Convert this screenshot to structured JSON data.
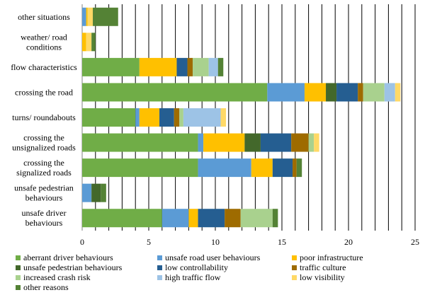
{
  "chart_data": {
    "type": "bar",
    "orientation": "horizontal",
    "stacked": true,
    "title": "",
    "xlabel": "",
    "ylabel": "",
    "xlim": [
      0,
      25
    ],
    "xticks": [
      0,
      5,
      10,
      15,
      20,
      25
    ],
    "grid": "vertical",
    "legend_position": "bottom",
    "categories": [
      [
        "other situations"
      ],
      [
        "weather/ road",
        "conditions"
      ],
      [
        "flow characteristics"
      ],
      [
        "crossing the road"
      ],
      [
        "turns/ roundabouts"
      ],
      [
        "crossing the",
        "unsignalized roads"
      ],
      [
        "crossing the",
        "signalized roads"
      ],
      [
        "unsafe pedestrian",
        "behaviours"
      ],
      [
        "unsafe driver",
        "behaviours"
      ]
    ],
    "series": [
      {
        "name": "aberrant driver behaviours",
        "color": "#70AD47",
        "values": [
          0,
          0,
          4.3,
          13.9,
          4.0,
          8.7,
          8.7,
          0,
          6.0
        ]
      },
      {
        "name": "unsafe road user behaviours",
        "color": "#5B9BD5",
        "values": [
          0.3,
          0,
          0,
          2.8,
          0.3,
          0.4,
          4.0,
          0.7,
          2.0
        ]
      },
      {
        "name": "poor infrastructure",
        "color": "#FFC000",
        "values": [
          0.1,
          0.3,
          2.8,
          1.6,
          1.5,
          3.1,
          1.6,
          0,
          0.7
        ]
      },
      {
        "name": "unsafe pedestrian behaviours",
        "color": "#43682B",
        "values": [
          0,
          0,
          0,
          0.8,
          0,
          1.2,
          0,
          0.7,
          0
        ]
      },
      {
        "name": "low controllability",
        "color": "#255E91",
        "values": [
          0,
          0,
          0.8,
          1.6,
          1.1,
          2.3,
          1.5,
          0,
          2.0
        ]
      },
      {
        "name": "traffic culture",
        "color": "#9E6B00",
        "values": [
          0,
          0,
          0.4,
          0.4,
          0.4,
          1.3,
          0.3,
          0,
          1.2
        ]
      },
      {
        "name": "increased crash risk",
        "color": "#A9D18E",
        "values": [
          0,
          0,
          1.2,
          1.6,
          0.3,
          0.4,
          0,
          0,
          2.4
        ]
      },
      {
        "name": "high traffic flow",
        "color": "#9DC3E6",
        "values": [
          0,
          0,
          0.7,
          0.8,
          2.8,
          0,
          0,
          0,
          0
        ]
      },
      {
        "name": "low visibility",
        "color": "#FFD966",
        "values": [
          0.4,
          0.4,
          0,
          0.4,
          0.4,
          0.4,
          0,
          0,
          0
        ]
      },
      {
        "name": "other reasons",
        "color": "#548235",
        "values": [
          1.9,
          0.3,
          0.4,
          0,
          0,
          0,
          0.4,
          0.4,
          0.4
        ]
      }
    ]
  }
}
